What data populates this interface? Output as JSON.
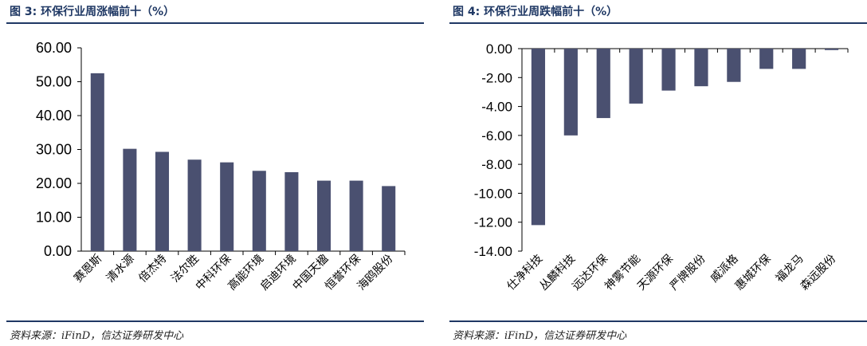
{
  "panels": [
    {
      "title": "图 3:  环保行业周涨幅前十（%）",
      "source": "资料来源：iFinD，信达证券研发中心"
    },
    {
      "title": "图 4:  环保行业周跌幅前十（%）",
      "source": "资料来源：iFinD，信达证券研发中心"
    }
  ],
  "colors": {
    "bar": "#4a5070",
    "rule": "#1f3864"
  },
  "chart_data": [
    {
      "type": "bar",
      "title": "图 3:  环保行业周涨幅前十（%）",
      "categories": [
        "赛恩斯",
        "清水源",
        "倍杰特",
        "法尔胜",
        "中科环保",
        "高能环境",
        "启迪环境",
        "中国天楹",
        "恒誉环保",
        "海鸥股份"
      ],
      "values": [
        52.5,
        30.2,
        29.3,
        27.0,
        26.2,
        23.7,
        23.3,
        20.8,
        20.8,
        19.2
      ],
      "yticks": [
        "0.00",
        "10.00",
        "20.00",
        "30.00",
        "40.00",
        "50.00",
        "60.00"
      ],
      "ylim": [
        0,
        60
      ],
      "grid": false,
      "legend": "none"
    },
    {
      "type": "bar",
      "title": "图 4:  环保行业周跌幅前十（%）",
      "categories": [
        "仕净科技",
        "丛麟科技",
        "远达环保",
        "神雾节能",
        "天源环保",
        "严牌股份",
        "威派格",
        "惠城环保",
        "福龙马",
        "森远股份"
      ],
      "values": [
        -12.2,
        -6.0,
        -4.8,
        -3.8,
        -2.9,
        -2.6,
        -2.3,
        -1.4,
        -1.4,
        -0.1
      ],
      "yticks": [
        "-14.00",
        "-12.00",
        "-10.00",
        "-8.00",
        "-6.00",
        "-4.00",
        "-2.00",
        "0.00"
      ],
      "ylim": [
        -14,
        0
      ],
      "grid": false,
      "legend": "none"
    }
  ]
}
